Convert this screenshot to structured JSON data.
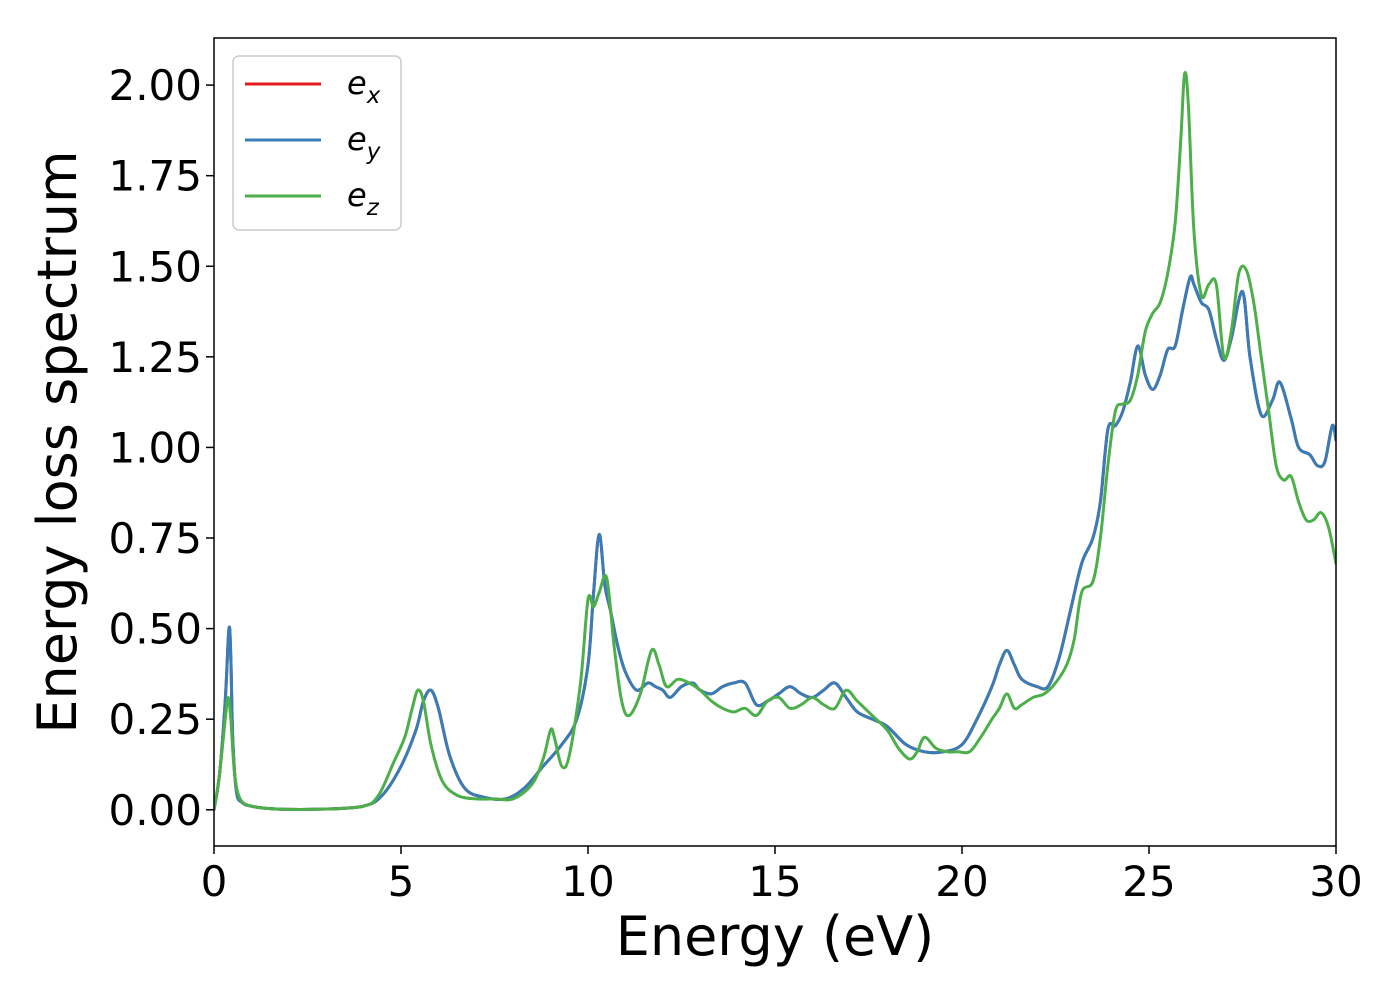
{
  "chart_data": {
    "type": "line",
    "xlabel": "Energy (eV)",
    "ylabel": "Energy loss spectrum",
    "xlim": [
      0,
      30
    ],
    "ylim": [
      -0.1,
      2.13
    ],
    "x_ticks": [
      0,
      5,
      10,
      15,
      20,
      25,
      30
    ],
    "x_tick_labels": [
      "0",
      "5",
      "10",
      "15",
      "20",
      "25",
      "30"
    ],
    "y_ticks": [
      0,
      0.25,
      0.5,
      0.75,
      1.0,
      1.25,
      1.5,
      1.75,
      2.0
    ],
    "y_tick_labels": [
      "0.00",
      "0.25",
      "0.50",
      "0.75",
      "1.00",
      "1.25",
      "1.50",
      "1.75",
      "2.00"
    ],
    "grid": false,
    "legend_position": "top-left",
    "series": [
      {
        "name": "e_x",
        "legend_base": "e",
        "legend_sub": "x",
        "color": "#e41a1c",
        "x": [
          0,
          0.15,
          0.3,
          0.4,
          0.45,
          0.5,
          0.6,
          0.75,
          1.0,
          1.5,
          2.0,
          3.0,
          4.0,
          4.5,
          5.0,
          5.4,
          5.6,
          5.8,
          6.0,
          6.3,
          6.7,
          7.2,
          7.8,
          8.3,
          8.8,
          9.3,
          9.7,
          10.0,
          10.15,
          10.3,
          10.45,
          10.6,
          10.8,
          11.0,
          11.3,
          11.6,
          11.8,
          12.0,
          12.2,
          12.5,
          12.8,
          13.0,
          13.3,
          13.6,
          13.9,
          14.2,
          14.5,
          14.8,
          15.1,
          15.4,
          15.7,
          16.0,
          16.3,
          16.6,
          16.9,
          17.2,
          17.6,
          18.0,
          18.5,
          19.0,
          19.5,
          20.0,
          20.4,
          20.8,
          21.0,
          21.2,
          21.4,
          21.6,
          22.0,
          22.3,
          22.6,
          22.9,
          23.2,
          23.5,
          23.7,
          23.9,
          24.1,
          24.3,
          24.5,
          24.7,
          24.9,
          25.1,
          25.3,
          25.5,
          25.7,
          25.9,
          26.1,
          26.2,
          26.4,
          26.6,
          26.8,
          27.0,
          27.2,
          27.5,
          27.7,
          28.0,
          28.3,
          28.5,
          28.8,
          29.0,
          29.3,
          29.5,
          29.7,
          29.9,
          30.0
        ],
        "y": [
          0.0,
          0.1,
          0.3,
          0.5,
          0.42,
          0.2,
          0.05,
          0.02,
          0.01,
          0.003,
          0.001,
          0.002,
          0.01,
          0.04,
          0.12,
          0.22,
          0.3,
          0.33,
          0.28,
          0.15,
          0.06,
          0.035,
          0.03,
          0.06,
          0.12,
          0.18,
          0.25,
          0.4,
          0.6,
          0.76,
          0.62,
          0.55,
          0.45,
          0.38,
          0.33,
          0.35,
          0.34,
          0.33,
          0.31,
          0.34,
          0.35,
          0.33,
          0.32,
          0.34,
          0.35,
          0.35,
          0.29,
          0.3,
          0.32,
          0.34,
          0.32,
          0.31,
          0.33,
          0.35,
          0.31,
          0.27,
          0.25,
          0.23,
          0.18,
          0.16,
          0.16,
          0.18,
          0.25,
          0.34,
          0.4,
          0.44,
          0.4,
          0.36,
          0.34,
          0.34,
          0.42,
          0.55,
          0.68,
          0.75,
          0.85,
          1.05,
          1.06,
          1.1,
          1.18,
          1.28,
          1.2,
          1.16,
          1.2,
          1.27,
          1.28,
          1.38,
          1.47,
          1.45,
          1.4,
          1.38,
          1.3,
          1.24,
          1.3,
          1.43,
          1.25,
          1.09,
          1.13,
          1.18,
          1.08,
          1.0,
          0.98,
          0.95,
          0.96,
          1.06,
          1.02
        ]
      },
      {
        "name": "e_y",
        "legend_base": "e",
        "legend_sub": "y",
        "color": "#377eb8",
        "x": [
          0,
          0.15,
          0.3,
          0.4,
          0.45,
          0.5,
          0.6,
          0.75,
          1.0,
          1.5,
          2.0,
          3.0,
          4.0,
          4.5,
          5.0,
          5.4,
          5.6,
          5.8,
          6.0,
          6.3,
          6.7,
          7.2,
          7.8,
          8.3,
          8.8,
          9.3,
          9.7,
          10.0,
          10.15,
          10.3,
          10.45,
          10.6,
          10.8,
          11.0,
          11.3,
          11.6,
          11.8,
          12.0,
          12.2,
          12.5,
          12.8,
          13.0,
          13.3,
          13.6,
          13.9,
          14.2,
          14.5,
          14.8,
          15.1,
          15.4,
          15.7,
          16.0,
          16.3,
          16.6,
          16.9,
          17.2,
          17.6,
          18.0,
          18.5,
          19.0,
          19.5,
          20.0,
          20.4,
          20.8,
          21.0,
          21.2,
          21.4,
          21.6,
          22.0,
          22.3,
          22.6,
          22.9,
          23.2,
          23.5,
          23.7,
          23.9,
          24.1,
          24.3,
          24.5,
          24.7,
          24.9,
          25.1,
          25.3,
          25.5,
          25.7,
          25.9,
          26.1,
          26.2,
          26.4,
          26.6,
          26.8,
          27.0,
          27.2,
          27.5,
          27.7,
          28.0,
          28.3,
          28.5,
          28.8,
          29.0,
          29.3,
          29.5,
          29.7,
          29.9,
          30.0
        ],
        "y": [
          0.0,
          0.1,
          0.3,
          0.5,
          0.42,
          0.2,
          0.05,
          0.02,
          0.01,
          0.003,
          0.001,
          0.002,
          0.01,
          0.04,
          0.12,
          0.22,
          0.3,
          0.33,
          0.28,
          0.15,
          0.06,
          0.035,
          0.03,
          0.06,
          0.12,
          0.18,
          0.25,
          0.4,
          0.6,
          0.76,
          0.62,
          0.55,
          0.45,
          0.38,
          0.33,
          0.35,
          0.34,
          0.33,
          0.31,
          0.34,
          0.35,
          0.33,
          0.32,
          0.34,
          0.35,
          0.35,
          0.29,
          0.3,
          0.32,
          0.34,
          0.32,
          0.31,
          0.33,
          0.35,
          0.31,
          0.27,
          0.25,
          0.23,
          0.18,
          0.16,
          0.16,
          0.18,
          0.25,
          0.34,
          0.4,
          0.44,
          0.4,
          0.36,
          0.34,
          0.34,
          0.42,
          0.55,
          0.68,
          0.75,
          0.85,
          1.05,
          1.06,
          1.1,
          1.18,
          1.28,
          1.2,
          1.16,
          1.2,
          1.27,
          1.28,
          1.38,
          1.47,
          1.45,
          1.4,
          1.38,
          1.3,
          1.24,
          1.3,
          1.43,
          1.25,
          1.09,
          1.13,
          1.18,
          1.08,
          1.0,
          0.98,
          0.95,
          0.96,
          1.06,
          1.02
        ]
      },
      {
        "name": "e_z",
        "legend_base": "e",
        "legend_sub": "z",
        "color": "#4daf4a",
        "x": [
          0,
          0.15,
          0.3,
          0.38,
          0.45,
          0.55,
          0.7,
          1.0,
          1.5,
          2.0,
          3.0,
          4.0,
          4.4,
          4.8,
          5.1,
          5.3,
          5.45,
          5.6,
          5.8,
          6.1,
          6.5,
          7.0,
          7.5,
          8.0,
          8.5,
          8.8,
          9.0,
          9.1,
          9.3,
          9.5,
          9.8,
          10.0,
          10.15,
          10.3,
          10.5,
          10.7,
          10.9,
          11.1,
          11.4,
          11.7,
          11.9,
          12.1,
          12.4,
          12.7,
          13.0,
          13.3,
          13.6,
          13.9,
          14.2,
          14.5,
          14.8,
          15.1,
          15.4,
          15.7,
          16.0,
          16.3,
          16.6,
          16.9,
          17.2,
          17.6,
          18.0,
          18.3,
          18.6,
          18.8,
          19.0,
          19.3,
          19.6,
          19.9,
          20.2,
          20.5,
          20.8,
          21.0,
          21.2,
          21.4,
          21.6,
          21.9,
          22.2,
          22.5,
          22.8,
          23.0,
          23.2,
          23.5,
          23.7,
          23.9,
          24.1,
          24.3,
          24.5,
          24.7,
          24.9,
          25.1,
          25.3,
          25.5,
          25.7,
          25.85,
          25.95,
          26.05,
          26.2,
          26.4,
          26.6,
          26.8,
          27.0,
          27.2,
          27.4,
          27.6,
          27.8,
          28.0,
          28.2,
          28.4,
          28.6,
          28.8,
          29.0,
          29.2,
          29.4,
          29.6,
          29.8,
          30.0
        ],
        "y": [
          0.0,
          0.1,
          0.25,
          0.31,
          0.25,
          0.1,
          0.03,
          0.01,
          0.003,
          0.001,
          0.002,
          0.01,
          0.04,
          0.13,
          0.2,
          0.28,
          0.33,
          0.3,
          0.18,
          0.08,
          0.04,
          0.03,
          0.03,
          0.03,
          0.07,
          0.14,
          0.22,
          0.2,
          0.12,
          0.15,
          0.35,
          0.58,
          0.56,
          0.6,
          0.64,
          0.45,
          0.3,
          0.26,
          0.32,
          0.44,
          0.4,
          0.34,
          0.36,
          0.35,
          0.33,
          0.3,
          0.28,
          0.27,
          0.28,
          0.26,
          0.3,
          0.31,
          0.28,
          0.29,
          0.31,
          0.29,
          0.28,
          0.33,
          0.3,
          0.26,
          0.22,
          0.17,
          0.14,
          0.16,
          0.2,
          0.17,
          0.16,
          0.16,
          0.16,
          0.2,
          0.25,
          0.28,
          0.32,
          0.28,
          0.29,
          0.31,
          0.32,
          0.35,
          0.4,
          0.47,
          0.6,
          0.63,
          0.75,
          0.95,
          1.1,
          1.12,
          1.13,
          1.2,
          1.32,
          1.37,
          1.4,
          1.48,
          1.62,
          1.85,
          2.03,
          1.95,
          1.6,
          1.42,
          1.45,
          1.45,
          1.25,
          1.32,
          1.48,
          1.49,
          1.4,
          1.25,
          1.1,
          0.95,
          0.91,
          0.92,
          0.85,
          0.8,
          0.8,
          0.82,
          0.78,
          0.68
        ]
      }
    ]
  }
}
